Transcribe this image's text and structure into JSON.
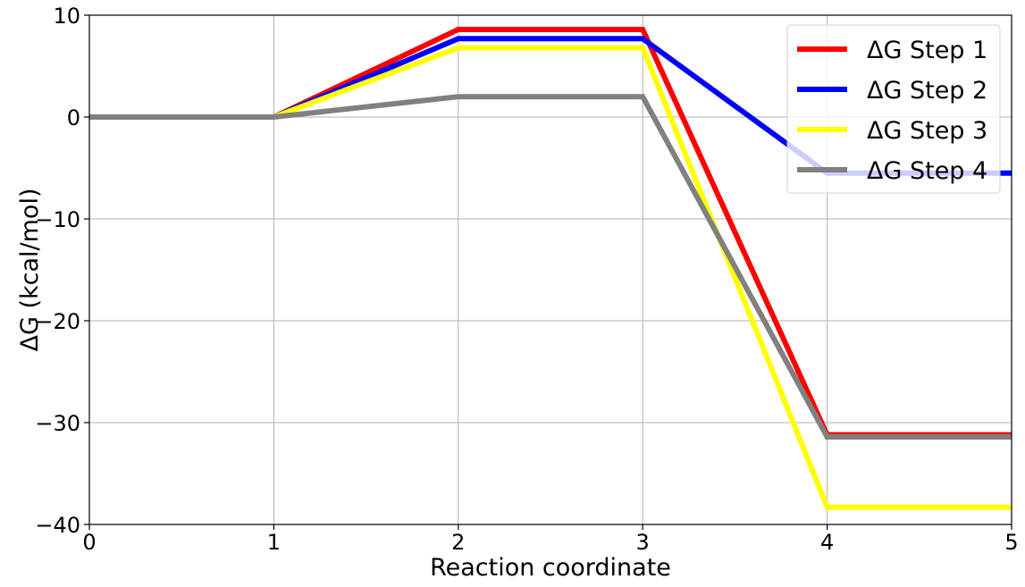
{
  "chart_data": {
    "type": "line",
    "title": "",
    "xlabel": "Reaction coordinate",
    "ylabel": "ΔG (kcal/mol)",
    "xlim": [
      0,
      5
    ],
    "ylim": [
      -40,
      10
    ],
    "xticks": [
      0,
      1,
      2,
      3,
      4,
      5
    ],
    "yticks": [
      -40,
      -30,
      -20,
      -10,
      0,
      10
    ],
    "xtick_labels": [
      "0",
      "1",
      "2",
      "3",
      "4",
      "5"
    ],
    "ytick_labels": [
      "−40",
      "−30",
      "−20",
      "−10",
      "0",
      "10"
    ],
    "grid": true,
    "legend_position": "top-right",
    "x": [
      0,
      1,
      2,
      3,
      4,
      5
    ],
    "series": [
      {
        "name": "ΔG Step 1",
        "color": "#ff0000",
        "values": [
          0,
          0,
          8.6,
          8.6,
          -31.2,
          -31.2
        ]
      },
      {
        "name": "ΔG Step 2",
        "color": "#0000ff",
        "values": [
          0,
          0,
          7.7,
          7.7,
          -5.5,
          -5.5
        ]
      },
      {
        "name": "ΔG Step 3",
        "color": "#ffff00",
        "values": [
          0,
          0,
          6.8,
          6.8,
          -38.3,
          -38.3
        ]
      },
      {
        "name": "ΔG Step 4",
        "color": "#808080",
        "values": [
          0,
          0,
          2.0,
          2.0,
          -31.4,
          -31.4
        ]
      }
    ]
  }
}
